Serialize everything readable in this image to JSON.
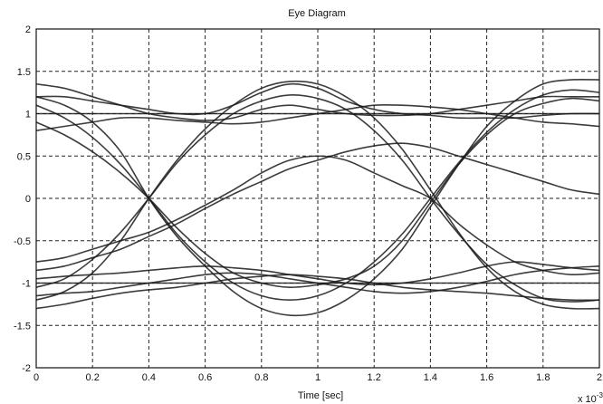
{
  "chart_data": {
    "type": "line",
    "title": "Eye Diagram",
    "xlabel": "Time [sec]",
    "ylabel": "",
    "x_multiplier": "x 10",
    "x_multiplier_exp": "-3",
    "xlim": [
      0,
      2
    ],
    "ylim": [
      -2,
      2
    ],
    "xticks": [
      0,
      0.2,
      0.4,
      0.6,
      0.8,
      1,
      1.2,
      1.4,
      1.6,
      1.8,
      2
    ],
    "xtick_labels": [
      "0",
      "0.2",
      "0.4",
      "0.6",
      "0.8",
      "1",
      "1.2",
      "1.4",
      "1.6",
      "1.8",
      "2"
    ],
    "yticks": [
      -2,
      -1.5,
      -1,
      -0.5,
      0,
      0.5,
      1,
      1.5,
      2
    ],
    "ytick_labels": [
      "-2",
      "-1.5",
      "-1",
      "-0.5",
      "0",
      "0.5",
      "1",
      "1.5",
      "2"
    ],
    "grid": true,
    "grid_style": "dashed",
    "line_color": "#1a1a1a",
    "series": [
      {
        "x": [
          0,
          0.1,
          0.2,
          0.3,
          0.4,
          0.5,
          0.6,
          0.7,
          0.8,
          0.9,
          1.0,
          1.1,
          1.2,
          1.3,
          1.4,
          1.5,
          1.6,
          1.7,
          1.8,
          1.9,
          2.0
        ],
        "y": [
          1.0,
          1.0,
          1.0,
          1.0,
          1.0,
          1.0,
          1.0,
          1.0,
          1.0,
          1.0,
          1.0,
          1.0,
          1.0,
          1.0,
          1.0,
          1.0,
          1.0,
          1.0,
          1.0,
          1.0,
          1.0
        ]
      },
      {
        "x": [
          0,
          0.1,
          0.2,
          0.3,
          0.4,
          0.5,
          0.6,
          0.7,
          0.8,
          0.9,
          1.0,
          1.1,
          1.2,
          1.3,
          1.4,
          1.5,
          1.6,
          1.7,
          1.8,
          1.9,
          2.0
        ],
        "y": [
          1.35,
          1.3,
          1.2,
          1.1,
          1.0,
          0.95,
          0.92,
          0.95,
          1.05,
          1.1,
          1.05,
          1.0,
          0.98,
          0.98,
          1.0,
          1.05,
          1.1,
          1.15,
          1.2,
          1.2,
          1.2
        ]
      },
      {
        "x": [
          0,
          0.1,
          0.2,
          0.3,
          0.4,
          0.5,
          0.6,
          0.7,
          0.8,
          0.9,
          1.0,
          1.1,
          1.2,
          1.3,
          1.4,
          1.5,
          1.6,
          1.7,
          1.8,
          1.9,
          2.0
        ],
        "y": [
          1.2,
          1.2,
          1.15,
          1.1,
          1.05,
          1.0,
          1.0,
          1.1,
          1.25,
          1.35,
          1.3,
          1.15,
          1.05,
          1.0,
          0.98,
          0.95,
          0.95,
          0.95,
          0.98,
          1.0,
          1.0
        ]
      },
      {
        "x": [
          0,
          0.1,
          0.2,
          0.3,
          0.4,
          0.5,
          0.6,
          0.7,
          0.8,
          0.9,
          1.0,
          1.1,
          1.2,
          1.3,
          1.4,
          1.5,
          1.6,
          1.7,
          1.8,
          1.9,
          2.0
        ],
        "y": [
          0.8,
          0.85,
          0.9,
          0.95,
          0.95,
          0.92,
          0.9,
          0.88,
          0.9,
          0.95,
          1.0,
          1.05,
          1.1,
          1.1,
          1.08,
          1.05,
          1.0,
          0.95,
          0.9,
          0.88,
          0.85
        ]
      },
      {
        "x": [
          0,
          0.1,
          0.2,
          0.3,
          0.4,
          0.5,
          0.6,
          0.7,
          0.8,
          0.9,
          1.0,
          1.1,
          1.2,
          1.3,
          1.4,
          1.5,
          1.6,
          1.7,
          1.8,
          1.9,
          2.0
        ],
        "y": [
          1.2,
          1.1,
          0.9,
          0.55,
          0.0,
          -0.45,
          -0.8,
          -1.1,
          -1.3,
          -1.38,
          -1.35,
          -1.2,
          -0.95,
          -0.6,
          -0.1,
          0.4,
          0.85,
          1.15,
          1.35,
          1.4,
          1.4
        ]
      },
      {
        "x": [
          0,
          0.1,
          0.2,
          0.3,
          0.4,
          0.5,
          0.6,
          0.7,
          0.8,
          0.9,
          1.0,
          1.1,
          1.2,
          1.3,
          1.4,
          1.5,
          1.6,
          1.7,
          1.8,
          1.9,
          2.0
        ],
        "y": [
          1.1,
          0.95,
          0.72,
          0.4,
          0.0,
          -0.42,
          -0.75,
          -1.0,
          -1.15,
          -1.2,
          -1.15,
          -1.0,
          -0.75,
          -0.42,
          0.0,
          0.42,
          0.78,
          1.05,
          1.22,
          1.28,
          1.25
        ]
      },
      {
        "x": [
          0,
          0.1,
          0.2,
          0.3,
          0.4,
          0.5,
          0.6,
          0.7,
          0.8,
          0.9,
          1.0,
          1.1,
          1.2,
          1.3,
          1.4,
          1.5,
          1.6,
          1.7,
          1.8,
          1.9,
          2.0
        ],
        "y": [
          0.9,
          0.75,
          0.55,
          0.3,
          0.0,
          -0.35,
          -0.65,
          -0.88,
          -1.0,
          -1.05,
          -1.02,
          -0.95,
          -0.8,
          -0.5,
          -0.05,
          0.4,
          0.75,
          1.0,
          1.12,
          1.18,
          1.15
        ]
      },
      {
        "x": [
          0,
          0.1,
          0.2,
          0.3,
          0.4,
          0.5,
          0.6,
          0.7,
          0.8,
          0.9,
          1.0,
          1.1,
          1.2,
          1.3,
          1.4,
          1.5,
          1.6,
          1.7,
          1.8,
          1.9,
          2.0
        ],
        "y": [
          -1.2,
          -1.1,
          -0.88,
          -0.5,
          0.0,
          0.45,
          0.82,
          1.1,
          1.3,
          1.38,
          1.35,
          1.2,
          0.95,
          0.58,
          0.1,
          -0.4,
          -0.82,
          -1.1,
          -1.25,
          -1.3,
          -1.3
        ]
      },
      {
        "x": [
          0,
          0.1,
          0.2,
          0.3,
          0.4,
          0.5,
          0.6,
          0.7,
          0.8,
          0.9,
          1.0,
          1.1,
          1.2,
          1.3,
          1.4,
          1.5,
          1.6,
          1.7,
          1.8,
          1.9,
          2.0
        ],
        "y": [
          -1.05,
          -0.95,
          -0.72,
          -0.4,
          0.0,
          0.42,
          0.75,
          1.0,
          1.15,
          1.22,
          1.18,
          1.05,
          0.8,
          0.45,
          0.0,
          -0.42,
          -0.78,
          -1.02,
          -1.18,
          -1.22,
          -1.2
        ]
      },
      {
        "x": [
          0,
          0.1,
          0.2,
          0.3,
          0.4,
          0.5,
          0.6,
          0.7,
          0.8,
          0.9,
          1.0,
          1.1,
          1.2,
          1.3,
          1.4,
          1.5,
          1.6,
          1.7,
          1.8,
          1.9,
          2.0
        ],
        "y": [
          -0.75,
          -0.7,
          -0.6,
          -0.5,
          -0.4,
          -0.25,
          -0.08,
          0.1,
          0.3,
          0.45,
          0.5,
          0.45,
          0.3,
          0.15,
          0.0,
          -0.3,
          -0.55,
          -0.75,
          -0.85,
          -0.9,
          -0.88
        ]
      },
      {
        "x": [
          0,
          0.1,
          0.2,
          0.3,
          0.4,
          0.5,
          0.6,
          0.7,
          0.8,
          0.9,
          1.0,
          1.1,
          1.2,
          1.3,
          1.4,
          1.5,
          1.6,
          1.7,
          1.8,
          1.9,
          2.0
        ],
        "y": [
          -0.85,
          -0.8,
          -0.7,
          -0.6,
          -0.45,
          -0.3,
          -0.12,
          0.05,
          0.2,
          0.35,
          0.45,
          0.55,
          0.62,
          0.65,
          0.6,
          0.5,
          0.4,
          0.3,
          0.2,
          0.1,
          0.05
        ]
      },
      {
        "x": [
          0,
          0.1,
          0.2,
          0.3,
          0.4,
          0.5,
          0.6,
          0.7,
          0.8,
          0.9,
          1.0,
          1.1,
          1.2,
          1.3,
          1.4,
          1.5,
          1.6,
          1.7,
          1.8,
          1.9,
          2.0
        ],
        "y": [
          -1.0,
          -1.0,
          -1.0,
          -1.0,
          -1.0,
          -1.0,
          -1.0,
          -1.0,
          -1.0,
          -1.0,
          -1.0,
          -1.0,
          -1.0,
          -1.0,
          -1.0,
          -1.0,
          -1.0,
          -1.0,
          -1.0,
          -1.0,
          -1.0
        ]
      },
      {
        "x": [
          0,
          0.1,
          0.2,
          0.3,
          0.4,
          0.5,
          0.6,
          0.7,
          0.8,
          0.9,
          1.0,
          1.1,
          1.2,
          1.3,
          1.4,
          1.5,
          1.6,
          1.7,
          1.8,
          1.9,
          2.0
        ],
        "y": [
          -0.95,
          -0.92,
          -0.9,
          -0.88,
          -0.85,
          -0.82,
          -0.8,
          -0.82,
          -0.85,
          -0.9,
          -0.95,
          -1.0,
          -1.02,
          -1.0,
          -0.95,
          -0.88,
          -0.8,
          -0.75,
          -0.78,
          -0.82,
          -0.85
        ]
      },
      {
        "x": [
          0,
          0.1,
          0.2,
          0.3,
          0.4,
          0.5,
          0.6,
          0.7,
          0.8,
          0.9,
          1.0,
          1.1,
          1.2,
          1.3,
          1.4,
          1.5,
          1.6,
          1.7,
          1.8,
          1.9,
          2.0
        ],
        "y": [
          -1.3,
          -1.25,
          -1.18,
          -1.12,
          -1.08,
          -1.05,
          -1.0,
          -0.95,
          -0.92,
          -0.9,
          -0.92,
          -0.95,
          -1.0,
          -1.05,
          -1.08,
          -1.1,
          -1.12,
          -1.15,
          -1.18,
          -1.2,
          -1.2
        ]
      },
      {
        "x": [
          0,
          0.1,
          0.2,
          0.3,
          0.4,
          0.5,
          0.6,
          0.7,
          0.8,
          0.9,
          1.0,
          1.1,
          1.2,
          1.3,
          1.4,
          1.5,
          1.6,
          1.7,
          1.8,
          1.9,
          2.0
        ],
        "y": [
          -1.15,
          -1.12,
          -1.1,
          -1.05,
          -1.0,
          -0.95,
          -0.9,
          -0.88,
          -0.9,
          -0.95,
          -1.0,
          -1.05,
          -1.1,
          -1.12,
          -1.1,
          -1.05,
          -0.98,
          -0.9,
          -0.85,
          -0.82,
          -0.8
        ]
      }
    ]
  }
}
